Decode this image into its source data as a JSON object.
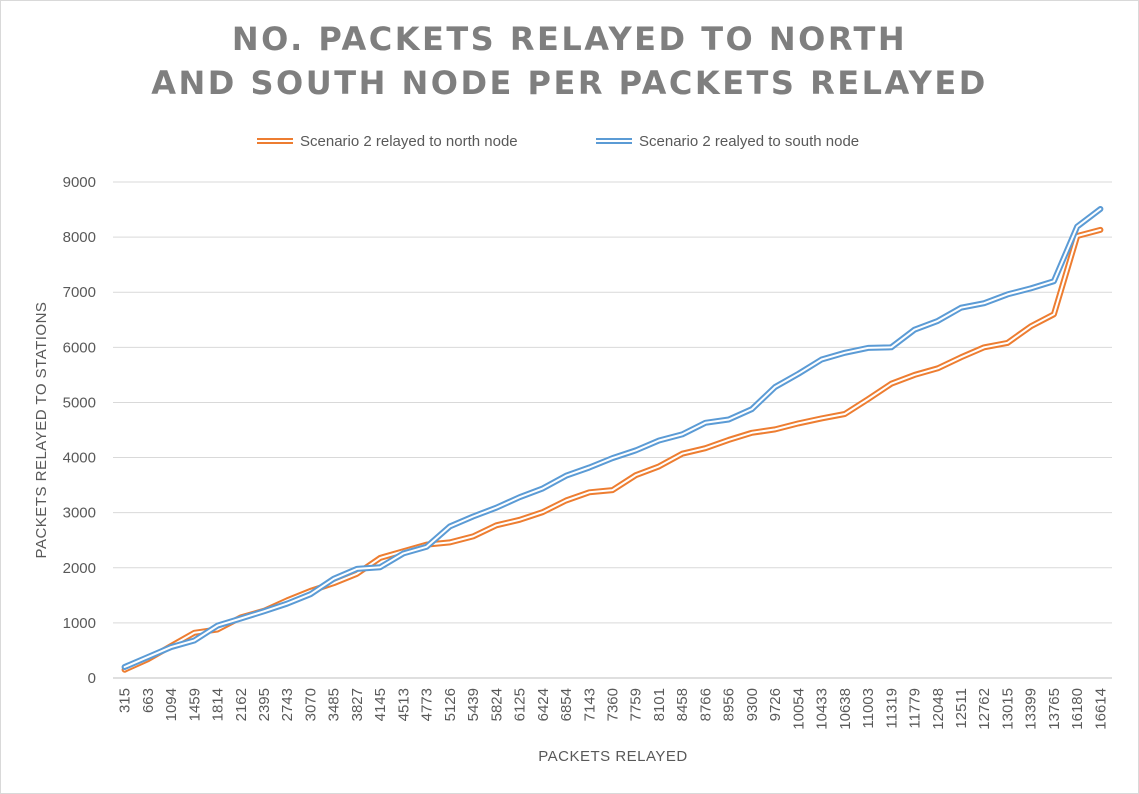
{
  "chart_data": {
    "type": "line",
    "title_line1": "NO. PACKETS RELAYED TO NORTH",
    "title_line2": "AND SOUTH NODE PER  PACKETS RELAYED",
    "xlabel": "PACKETS  RELAYED",
    "ylabel": "PACKETS RELAYED TO STATIONS",
    "ylim": [
      0,
      9000
    ],
    "yticks": [
      0,
      1000,
      2000,
      3000,
      4000,
      5000,
      6000,
      7000,
      8000,
      9000
    ],
    "grid": true,
    "legend_position": "top",
    "x": [
      "315",
      "663",
      "1094",
      "1459",
      "1814",
      "2162",
      "2395",
      "2743",
      "3070",
      "3485",
      "3827",
      "4145",
      "4513",
      "4773",
      "5126",
      "5439",
      "5824",
      "6125",
      "6424",
      "6854",
      "7143",
      "7360",
      "7759",
      "8101",
      "8458",
      "8766",
      "8956",
      "9300",
      "9726",
      "10054",
      "10433",
      "10638",
      "11003",
      "11319",
      "11779",
      "12048",
      "12511",
      "12762",
      "13015",
      "13399",
      "13765",
      "16180",
      "16614"
    ],
    "series": [
      {
        "name": "Scenario 2 relayed to north node",
        "color": "#ED7D31",
        "values": [
          150,
          340,
          580,
          820,
          880,
          1100,
          1220,
          1410,
          1580,
          1720,
          1890,
          2180,
          2300,
          2420,
          2460,
          2570,
          2770,
          2870,
          3010,
          3220,
          3370,
          3410,
          3680,
          3840,
          4070,
          4170,
          4320,
          4450,
          4510,
          4620,
          4710,
          4790,
          5060,
          5340,
          5500,
          5620,
          5820,
          6000,
          6080,
          6380,
          6600,
          8020,
          8130
        ]
      },
      {
        "name": "Scenario 2 realyed to south node",
        "color": "#5B9BD5",
        "values": [
          200,
          380,
          560,
          680,
          950,
          1080,
          1210,
          1350,
          1520,
          1800,
          1980,
          2010,
          2260,
          2380,
          2750,
          2930,
          3090,
          3280,
          3440,
          3670,
          3820,
          3990,
          4130,
          4310,
          4420,
          4630,
          4690,
          4880,
          5280,
          5520,
          5780,
          5900,
          5990,
          6000,
          6320,
          6480,
          6720,
          6800,
          6960,
          7070,
          7200,
          8190,
          8510
        ]
      }
    ]
  }
}
